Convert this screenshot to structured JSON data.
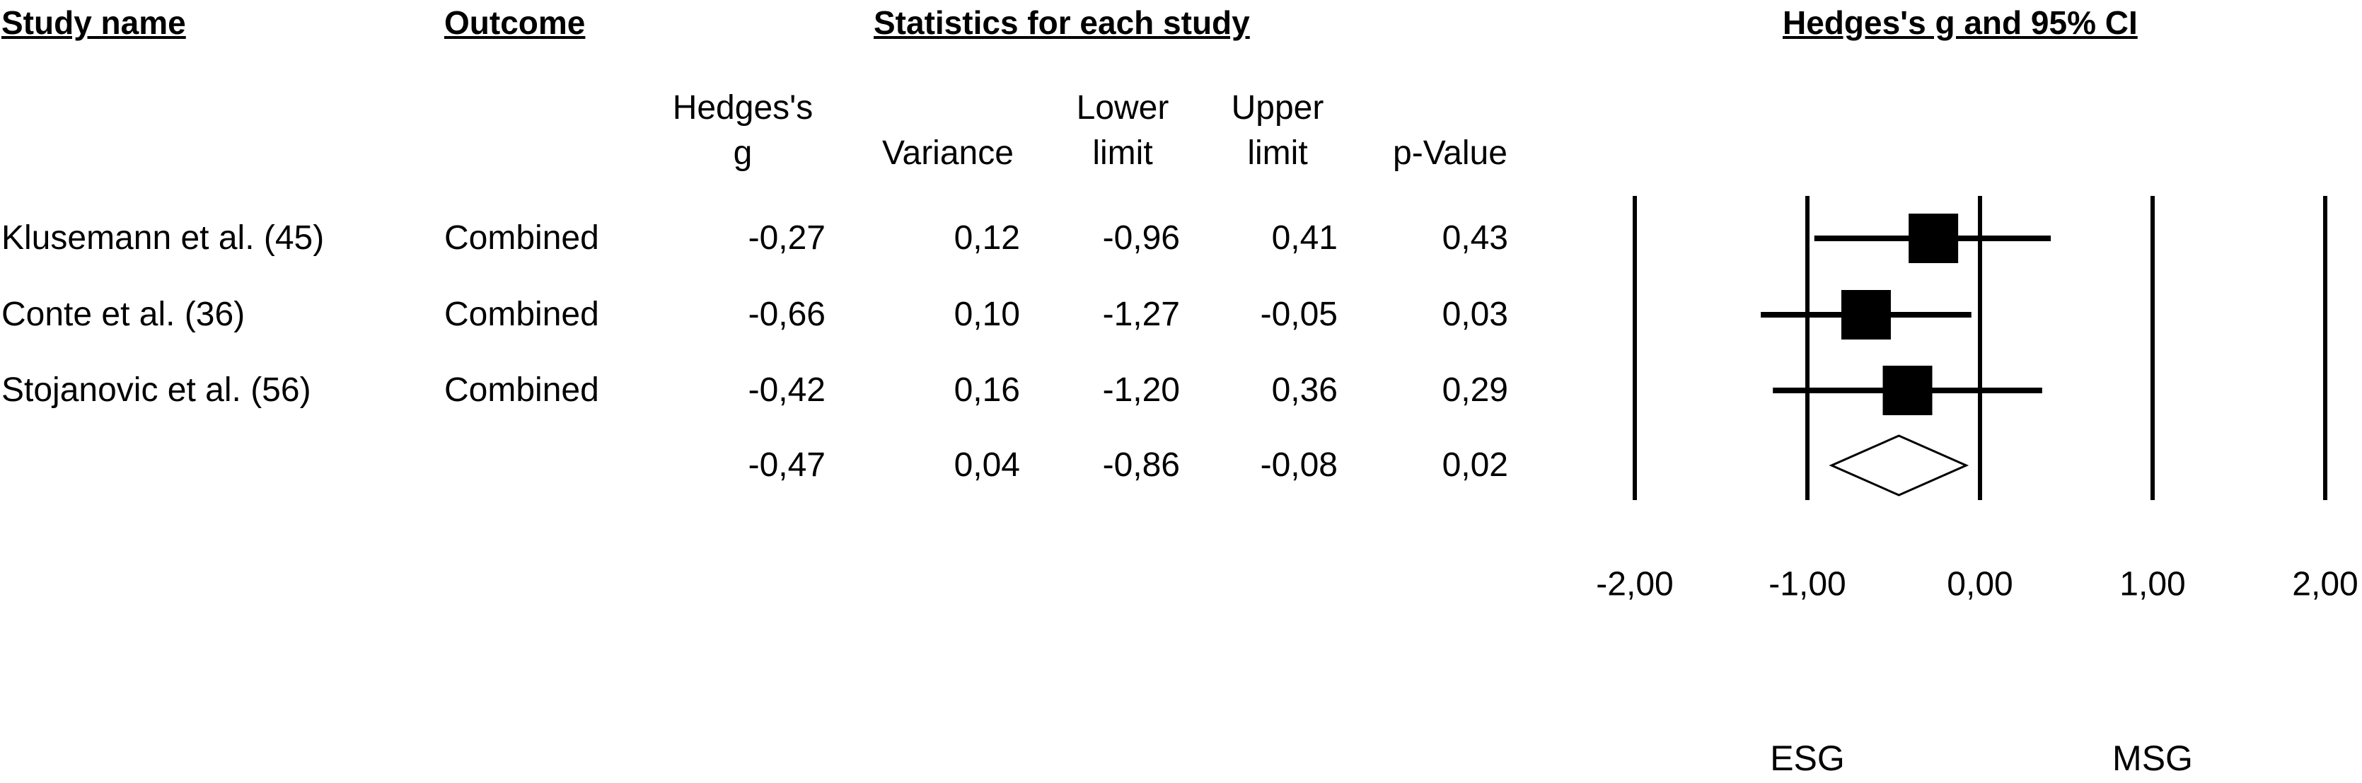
{
  "chart_data": {
    "type": "forest",
    "headers": {
      "study_name": "Study name",
      "outcome": "Outcome",
      "statistics": "Statistics for each study"
    },
    "title": "Hedges's g and 95% CI",
    "columns": [
      "Hedges's g",
      "Variance",
      "Lower limit",
      "Upper limit",
      "p-Value"
    ],
    "studies": [
      "Klusemann et al. (45)",
      "Conte et al. (36)",
      "Stojanovic et al. (56)",
      null
    ],
    "outcomes": [
      "Combined",
      "Combined",
      "Combined",
      null
    ],
    "g": {
      "values": [
        -0.27,
        -0.66,
        -0.42,
        -0.47
      ],
      "value_labels": [
        "-0,27",
        "-0,66",
        "-0,42",
        "-0,47"
      ]
    },
    "variance": [
      "0,12",
      "0,10",
      "0,16",
      "0,04"
    ],
    "lower": {
      "values": [
        -0.96,
        -1.27,
        -1.2,
        -0.86
      ],
      "value_labels": [
        "-0,96",
        "-1,27",
        "-1,20",
        "-0,86"
      ]
    },
    "upper": {
      "values": [
        0.41,
        -0.05,
        0.36,
        -0.08
      ],
      "value_labels": [
        "0,41",
        "-0,05",
        "0,36",
        "-0,08"
      ]
    },
    "p_value": [
      "0,43",
      "0,03",
      "0,29",
      "0,02"
    ],
    "xlim": [
      -2,
      2
    ],
    "xticks": [
      {
        "value": -2,
        "label": "-2,00"
      },
      {
        "value": -1,
        "label": "-1,00"
      },
      {
        "value": 0,
        "label": "0,00"
      },
      {
        "value": 1,
        "label": "1,00"
      },
      {
        "value": 2,
        "label": "2,00"
      }
    ],
    "left_label": "ESG",
    "right_label": "MSG",
    "color": "#000000"
  }
}
